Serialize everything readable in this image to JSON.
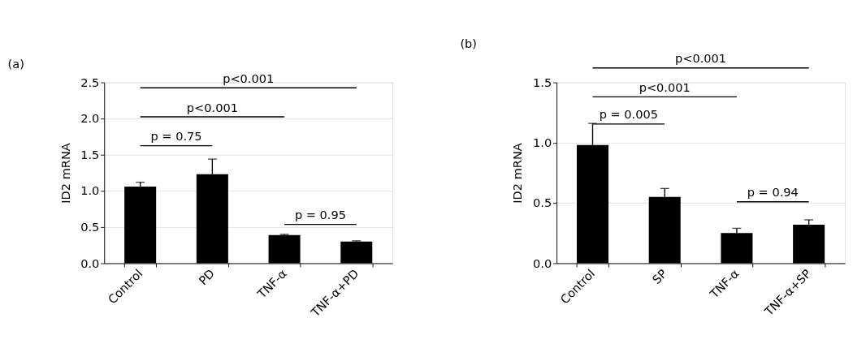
{
  "chart_data": [
    {
      "type": "bar",
      "title": "(a)",
      "ylabel": "ID2 mRNA",
      "categories": [
        "Control",
        "PD",
        "TNF-α",
        "TNF-α+PD"
      ],
      "values": [
        1.06,
        1.23,
        0.39,
        0.3
      ],
      "errors": [
        [
          1.06,
          1.12
        ],
        [
          1.23,
          1.44
        ],
        [
          0.39,
          0.4
        ],
        [
          0.3,
          0.31
        ]
      ],
      "color": "#000000",
      "ylim": [
        0,
        2.5
      ],
      "yticks": [
        {
          "value": 0,
          "label": "0.0"
        },
        0.5,
        {
          "value": 1,
          "label": "1.0"
        },
        1.5,
        {
          "value": 2,
          "label": "2.0"
        },
        2.5
      ],
      "grid": "y",
      "annotations": [
        "p<0.001",
        "p<0.001",
        "p = 0.75",
        "p = 0.95"
      ]
    },
    {
      "type": "bar",
      "title": "(b)",
      "ylabel": "ID2 mRNA",
      "categories": [
        "Control",
        "SP",
        "TNF-α",
        "TNF-α+SP"
      ],
      "values": [
        0.98,
        0.55,
        0.25,
        0.32
      ],
      "errors": [
        [
          0.98,
          1.16
        ],
        [
          0.55,
          0.62
        ],
        [
          0.25,
          0.29
        ],
        [
          0.32,
          0.36
        ]
      ],
      "color": "#000000",
      "ylim": [
        0,
        1.5
      ],
      "yticks": [
        {
          "value": 0,
          "label": "0.0"
        },
        0.5,
        {
          "value": 1,
          "label": "1.0"
        },
        1.5
      ],
      "grid": "y",
      "annotations": [
        "p<0.001",
        "p<0.001",
        "p = 0.005",
        "p = 0.94"
      ]
    }
  ]
}
